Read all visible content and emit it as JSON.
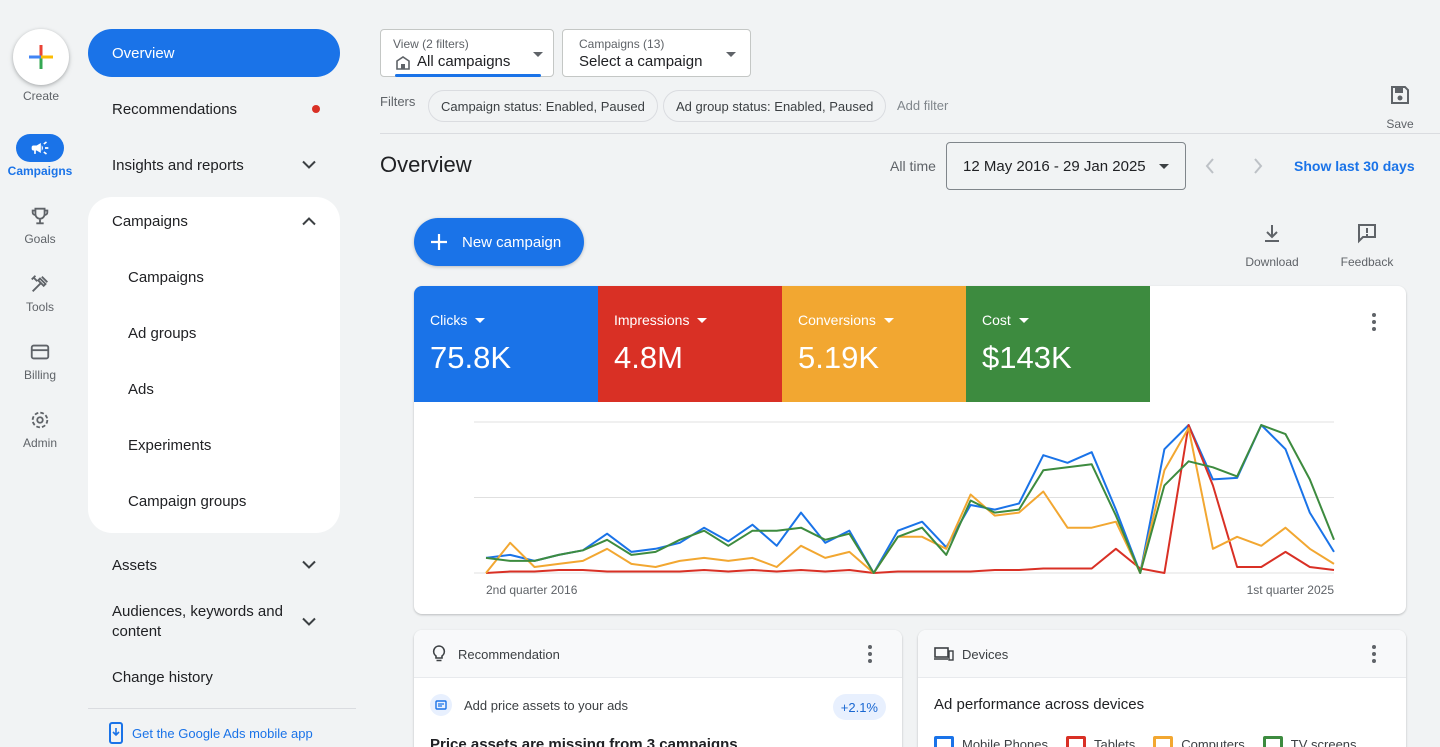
{
  "rail": {
    "create_label": "Create",
    "items": [
      {
        "label": "Campaigns",
        "icon": "megaphone-icon"
      },
      {
        "label": "Goals",
        "icon": "trophy-icon"
      },
      {
        "label": "Tools",
        "icon": "tools-icon"
      },
      {
        "label": "Billing",
        "icon": "credit-card-icon"
      },
      {
        "label": "Admin",
        "icon": "gear-icon"
      }
    ]
  },
  "nav": {
    "overview": "Overview",
    "recommendations": "Recommendations",
    "insights": "Insights and reports",
    "campaigns_group": "Campaigns",
    "campaigns_sub": [
      "Campaigns",
      "Ad groups",
      "Ads",
      "Experiments",
      "Campaign groups"
    ],
    "assets": "Assets",
    "audiences": "Audiences, keywords and content",
    "change_history": "Change history",
    "mobile_app": "Get the Google Ads mobile app"
  },
  "header": {
    "view_small": "View (2 filters)",
    "view_value": "All campaigns",
    "campaigns_small": "Campaigns (13)",
    "campaigns_value": "Select a campaign",
    "filters_label": "Filters",
    "chips": [
      "Campaign status: Enabled, Paused",
      "Ad group status: Enabled, Paused"
    ],
    "add_filter": "Add filter",
    "save": "Save"
  },
  "page": {
    "title": "Overview",
    "all_time": "All time",
    "date_range": "12 May 2016 - 29 Jan 2025",
    "show_last": "Show last 30 days",
    "new_campaign": "New campaign",
    "download": "Download",
    "feedback": "Feedback"
  },
  "metrics": [
    {
      "label": "Clicks",
      "value": "75.8K",
      "color": "#1a73e8"
    },
    {
      "label": "Impressions",
      "value": "4.8M",
      "color": "#d93025"
    },
    {
      "label": "Conversions",
      "value": "5.19K",
      "color": "#f2a731"
    },
    {
      "label": "Cost",
      "value": "$143K",
      "color": "#3d8b3f"
    }
  ],
  "chart_data": {
    "type": "line",
    "x_start_label": "2nd quarter 2016",
    "x_end_label": "1st quarter 2025",
    "grid": true,
    "series": [
      {
        "name": "Clicks",
        "color": "#1a73e8",
        "values": [
          10,
          12,
          8,
          12,
          15,
          26,
          14,
          16,
          20,
          30,
          21,
          32,
          18,
          40,
          20,
          28,
          0,
          28,
          34,
          17,
          45,
          42,
          46,
          78,
          73,
          80,
          42,
          0,
          82,
          98,
          62,
          63,
          98,
          82,
          40,
          14
        ]
      },
      {
        "name": "Impressions",
        "color": "#d93025",
        "values": [
          0,
          1,
          1,
          2,
          2,
          1,
          1,
          1,
          1,
          2,
          1,
          2,
          1,
          2,
          1,
          2,
          0,
          1,
          1,
          1,
          1,
          2,
          2,
          3,
          3,
          3,
          16,
          3,
          0,
          98,
          58,
          4,
          4,
          14,
          4,
          2
        ]
      },
      {
        "name": "Conversions",
        "color": "#f2a731",
        "values": [
          0,
          20,
          4,
          6,
          8,
          16,
          6,
          4,
          8,
          10,
          8,
          10,
          4,
          18,
          10,
          14,
          0,
          24,
          24,
          16,
          52,
          38,
          40,
          54,
          30,
          30,
          34,
          0,
          68,
          96,
          16,
          24,
          18,
          30,
          16,
          6
        ]
      },
      {
        "name": "Cost",
        "color": "#3d8b3f",
        "values": [
          10,
          8,
          8,
          12,
          15,
          22,
          12,
          14,
          22,
          28,
          18,
          28,
          28,
          30,
          22,
          26,
          0,
          24,
          30,
          12,
          48,
          40,
          42,
          68,
          70,
          72,
          38,
          0,
          58,
          74,
          70,
          64,
          98,
          92,
          62,
          22
        ]
      }
    ]
  },
  "recommendation": {
    "header": "Recommendation",
    "line": "Add price assets to your ads",
    "badge": "+2.1%",
    "title": "Price assets are missing from 3 campaigns"
  },
  "devices": {
    "header": "Devices",
    "title": "Ad performance across devices",
    "legend": [
      {
        "label": "Mobile Phones",
        "color": "#1a73e8"
      },
      {
        "label": "Tablets",
        "color": "#d93025"
      },
      {
        "label": "Computers",
        "color": "#f2a731"
      },
      {
        "label": "TV screens",
        "color": "#3d8b3f"
      }
    ]
  }
}
